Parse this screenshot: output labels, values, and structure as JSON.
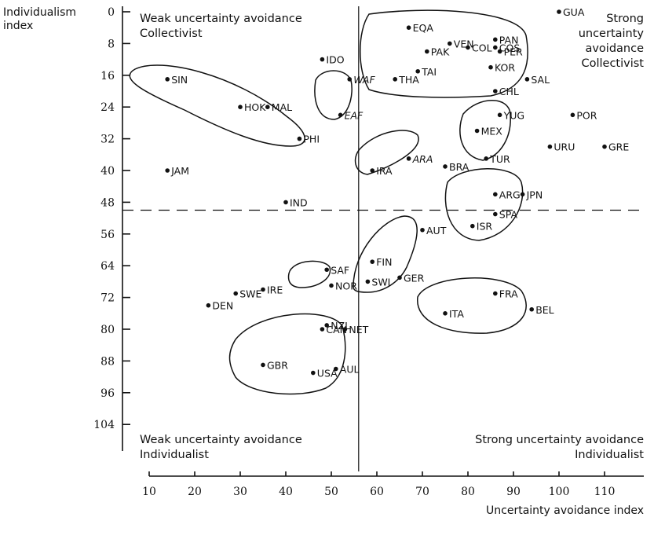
{
  "chart_data": {
    "type": "scatter",
    "title": "",
    "xlabel": "Uncertainty avoidance index",
    "ylabel": [
      "Individualism",
      "index"
    ],
    "xlim": [
      8,
      122
    ],
    "ylim": [
      0,
      112
    ],
    "y_inverted": true,
    "x_ticks": [
      10,
      20,
      30,
      40,
      50,
      60,
      70,
      80,
      90,
      100,
      110
    ],
    "y_ticks": [
      0,
      8,
      16,
      24,
      32,
      40,
      48,
      56,
      64,
      72,
      80,
      88,
      96,
      104
    ],
    "divider_x": 56,
    "divider_y": 50,
    "quadrants": {
      "top_left": [
        "Weak uncertainty avoidance",
        "Collectivist"
      ],
      "top_right": [
        "Strong",
        "uncertainty",
        "avoidance",
        "Collectivist"
      ],
      "bottom_left": [
        "Weak uncertainty avoidance",
        "Individualist"
      ],
      "bottom_right": [
        "Strong uncertainty avoidance",
        "Individualist"
      ]
    },
    "points": [
      {
        "label": "GUA",
        "x": 100,
        "y": 0
      },
      {
        "label": "EQA",
        "x": 67,
        "y": 4
      },
      {
        "label": "PAN",
        "x": 86,
        "y": 7
      },
      {
        "label": "VEN",
        "x": 76,
        "y": 8
      },
      {
        "label": "COS",
        "x": 86,
        "y": 9
      },
      {
        "label": "COL",
        "x": 80,
        "y": 9
      },
      {
        "label": "PAK",
        "x": 71,
        "y": 10
      },
      {
        "label": "PER",
        "x": 87,
        "y": 10
      },
      {
        "label": "IDO",
        "x": 48,
        "y": 12
      },
      {
        "label": "KOR",
        "x": 85,
        "y": 14
      },
      {
        "label": "TAI",
        "x": 69,
        "y": 15
      },
      {
        "label": "SIN",
        "x": 14,
        "y": 17
      },
      {
        "label": "WAF",
        "x": 54,
        "y": 17
      },
      {
        "label": "SAL",
        "x": 93,
        "y": 17
      },
      {
        "label": "THA",
        "x": 64,
        "y": 17
      },
      {
        "label": "CHL",
        "x": 86,
        "y": 20
      },
      {
        "label": "HOK",
        "x": 30,
        "y": 24
      },
      {
        "label": "MAL",
        "x": 36,
        "y": 24
      },
      {
        "label": "EAF",
        "x": 52,
        "y": 26
      },
      {
        "label": "POR",
        "x": 103,
        "y": 26
      },
      {
        "label": "YUG",
        "x": 87,
        "y": 26
      },
      {
        "label": "MEX",
        "x": 82,
        "y": 30
      },
      {
        "label": "PHI",
        "x": 43,
        "y": 32
      },
      {
        "label": "URU",
        "x": 98,
        "y": 34
      },
      {
        "label": "GRE",
        "x": 110,
        "y": 34
      },
      {
        "label": "TUR",
        "x": 84,
        "y": 37
      },
      {
        "label": "ARA",
        "x": 67,
        "y": 37
      },
      {
        "label": "BRA",
        "x": 75,
        "y": 39
      },
      {
        "label": "JAM",
        "x": 14,
        "y": 40
      },
      {
        "label": "IRA",
        "x": 59,
        "y": 40
      },
      {
        "label": "ARG",
        "x": 86,
        "y": 46
      },
      {
        "label": "JPN",
        "x": 92,
        "y": 46
      },
      {
        "label": "IND",
        "x": 40,
        "y": 48
      },
      {
        "label": "SPA",
        "x": 86,
        "y": 51
      },
      {
        "label": "ISR",
        "x": 81,
        "y": 54
      },
      {
        "label": "AUT",
        "x": 70,
        "y": 55
      },
      {
        "label": "FIN",
        "x": 59,
        "y": 63
      },
      {
        "label": "SAF",
        "x": 49,
        "y": 65
      },
      {
        "label": "SWI",
        "x": 58,
        "y": 68
      },
      {
        "label": "GER",
        "x": 65,
        "y": 67
      },
      {
        "label": "SWE",
        "x": 29,
        "y": 71
      },
      {
        "label": "IRE",
        "x": 35,
        "y": 70
      },
      {
        "label": "NOR",
        "x": 50,
        "y": 69
      },
      {
        "label": "FRA",
        "x": 86,
        "y": 71
      },
      {
        "label": "DEN",
        "x": 23,
        "y": 74
      },
      {
        "label": "ITA",
        "x": 75,
        "y": 76
      },
      {
        "label": "BEL",
        "x": 94,
        "y": 75
      },
      {
        "label": "NET",
        "x": 53,
        "y": 80
      },
      {
        "label": "CAN",
        "x": 48,
        "y": 80
      },
      {
        "label": "NZL",
        "x": 49,
        "y": 79
      },
      {
        "label": "GBR",
        "x": 35,
        "y": 89
      },
      {
        "label": "AUL",
        "x": 51,
        "y": 90
      },
      {
        "label": "USA",
        "x": 46,
        "y": 91
      }
    ],
    "italic_labels": [
      "WAF",
      "EAF",
      "ARA"
    ]
  }
}
